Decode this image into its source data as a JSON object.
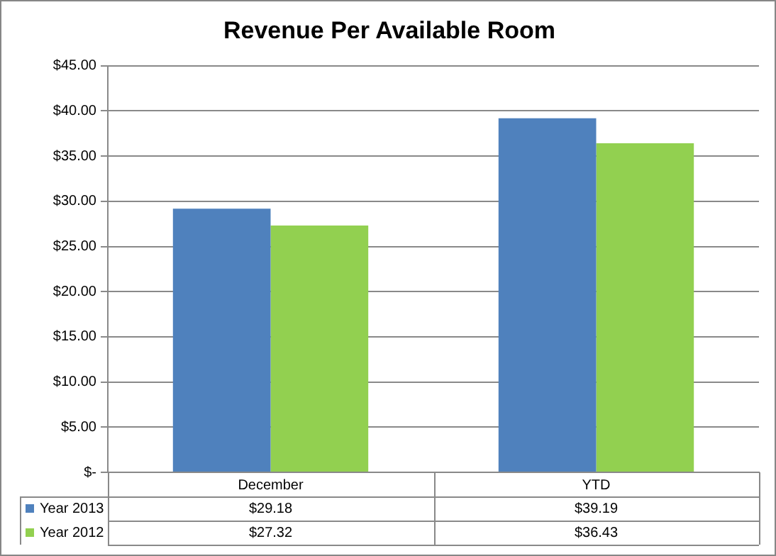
{
  "chart_data": {
    "type": "bar",
    "title": "Revenue Per Available Room",
    "categories": [
      "December",
      "YTD"
    ],
    "series": [
      {
        "name": "Year 2013",
        "color": "#4f81bd",
        "values": [
          29.18,
          39.19
        ],
        "value_labels": [
          "$29.18",
          "$39.19"
        ]
      },
      {
        "name": "Year 2012",
        "color": "#92d050",
        "values": [
          27.32,
          36.43
        ],
        "value_labels": [
          "$27.32",
          "$36.43"
        ]
      }
    ],
    "ylim": [
      0,
      45
    ],
    "yticks": [
      {
        "value": 0,
        "label": "$-"
      },
      {
        "value": 5,
        "label": "$5.00"
      },
      {
        "value": 10,
        "label": "$10.00"
      },
      {
        "value": 15,
        "label": "$15.00"
      },
      {
        "value": 20,
        "label": "$20.00"
      },
      {
        "value": 25,
        "label": "$25.00"
      },
      {
        "value": 30,
        "label": "$30.00"
      },
      {
        "value": 35,
        "label": "$35.00"
      },
      {
        "value": 40,
        "label": "$40.00"
      },
      {
        "value": 45,
        "label": "$45.00"
      }
    ],
    "grid": "y",
    "legend": "bottom"
  }
}
